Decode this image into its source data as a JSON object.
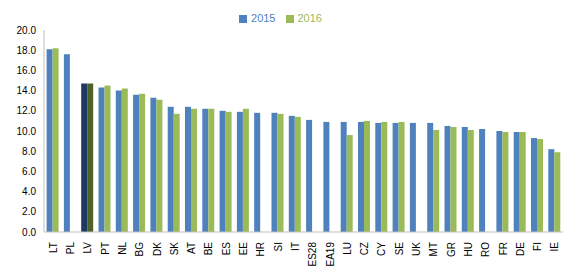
{
  "chart_data": {
    "type": "bar",
    "categories": [
      "LT",
      "PL",
      "LV",
      "PT",
      "NL",
      "BG",
      "DK",
      "SK",
      "AT",
      "BE",
      "ES",
      "EE",
      "HR",
      "SI",
      "IT",
      "ES28",
      "EA19",
      "LU",
      "CZ",
      "CY",
      "SE",
      "UK",
      "MT",
      "GR",
      "HU",
      "RO",
      "FR",
      "DE",
      "FI",
      "IE"
    ],
    "series": [
      {
        "name": "2015",
        "color": "#4F81BD",
        "colors": [
          "#4F81BD",
          "#4F81BD",
          "#1F3864",
          "#4F81BD",
          "#4F81BD",
          "#4F81BD",
          "#4F81BD",
          "#4F81BD",
          "#4F81BD",
          "#4F81BD",
          "#4F81BD",
          "#4F81BD",
          "#4F81BD",
          "#4F81BD",
          "#4F81BD",
          "#4F81BD",
          "#4F81BD",
          "#4F81BD",
          "#4F81BD",
          "#4F81BD",
          "#4F81BD",
          "#4F81BD",
          "#4F81BD",
          "#4F81BD",
          "#4F81BD",
          "#4F81BD",
          "#4F81BD",
          "#4F81BD",
          "#4F81BD",
          "#4F81BD"
        ],
        "values": [
          18.1,
          17.6,
          14.7,
          14.3,
          14.0,
          13.6,
          13.3,
          12.4,
          12.4,
          12.2,
          12.0,
          11.9,
          11.8,
          11.8,
          11.5,
          11.1,
          10.9,
          10.9,
          10.9,
          10.8,
          10.8,
          10.8,
          10.8,
          10.5,
          10.4,
          10.2,
          10.0,
          9.9,
          9.3,
          8.2
        ]
      },
      {
        "name": "2016",
        "color": "#9BBB59",
        "colors": [
          "#9BBB59",
          "#9BBB59",
          "#4F6228",
          "#9BBB59",
          "#9BBB59",
          "#9BBB59",
          "#9BBB59",
          "#9BBB59",
          "#9BBB59",
          "#9BBB59",
          "#9BBB59",
          "#9BBB59",
          "#9BBB59",
          "#9BBB59",
          "#9BBB59",
          "#9BBB59",
          "#9BBB59",
          "#9BBB59",
          "#9BBB59",
          "#9BBB59",
          "#9BBB59",
          "#9BBB59",
          "#9BBB59",
          "#9BBB59",
          "#9BBB59",
          "#9BBB59",
          "#9BBB59",
          "#9BBB59",
          "#9BBB59",
          "#9BBB59"
        ],
        "values": [
          18.2,
          null,
          14.7,
          14.5,
          14.2,
          13.7,
          13.1,
          11.7,
          12.2,
          12.2,
          11.9,
          12.2,
          null,
          11.7,
          11.4,
          null,
          null,
          9.6,
          11.0,
          10.9,
          10.9,
          null,
          10.1,
          10.4,
          10.1,
          null,
          9.9,
          9.9,
          9.2,
          7.9
        ]
      }
    ],
    "ylim": [
      0,
      20
    ],
    "yticks": [
      {
        "value": 0,
        "label": "0.0"
      },
      {
        "value": 2,
        "label": "2.0"
      },
      {
        "value": 4,
        "label": "4.0"
      },
      {
        "value": 6,
        "label": "6.0"
      },
      {
        "value": 8,
        "label": "8.0"
      },
      {
        "value": 10,
        "label": "10.0"
      },
      {
        "value": 12,
        "label": "12.0"
      },
      {
        "value": 14,
        "label": "14.0"
      },
      {
        "value": 16,
        "label": "16.0"
      },
      {
        "value": 18,
        "label": "18.0"
      },
      {
        "value": 20,
        "label": "20.0"
      }
    ],
    "grid": false,
    "legend": "top"
  }
}
